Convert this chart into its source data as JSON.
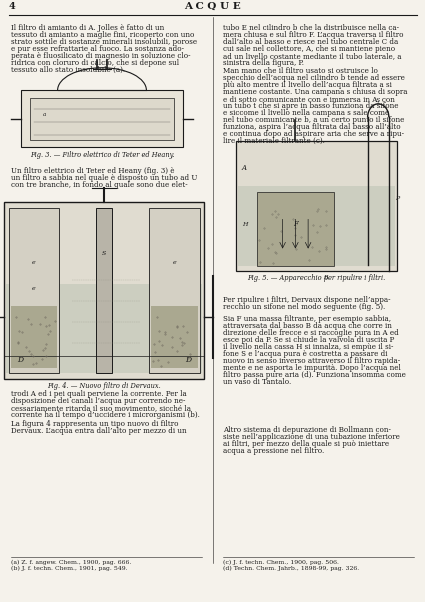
{
  "page_number": "4",
  "header_title": "A C Q U E",
  "background_color": "#f5f2eb",
  "text_color": "#1a1a1a",
  "fig3_caption": "Fig. 3. — Filtro elettrico di Teter ed Heany.",
  "fig4_caption": "Fig. 4. — Nuovo filtro di Dervaux.",
  "fig5_caption": "Fig. 5. — Apparecchio per ripulire i filtri.",
  "col1_p1": "Il filtro di amianto di A. Jolles è fatto di un\ntessuto di amianto a maglie fini, ricoperto con uno\nstrato sottile di sostanze minerali insolubili, porose\ne pur esse refrattarie al fuoco. La sostanza ado-\nperata è fluosilicato di magnesio in soluzione clo-\nridrica con cloruro di calcio, che si depone sul\ntessuto allo stato insolubile (a).",
  "col1_p2": "Un filtro elettrico di Teter ed Heany (fig. 3) è\nun filtro a sabbia nel quale è disposto un tubo ad U\ncon tre branche, in fondo al quale sono due elet-",
  "col1_p3": "trodi A ed i pei quali perviene la corrente. Per la\ndisposizione dei canali l’acqua pur correndo ne-\ncessariamente ritarda il suo movimento, sicché la\ncorrente ha il tempo d’uccidere i microrganismi (b).",
  "col1_p4": "La figura 4 rappresenta un tipo nuovo di filtro\nDervaux. L’acqua entra dall’alto per mezzo di un",
  "col1_fn": "(a) Z. f. angew. Chem., 1900, pag. 666.\n(b) J. f. techn. Chem., 1901, pag. 549.",
  "col2_p1": "tubo E nel cilindro b che la distribuisce nella ca-\nmera chiusa e sul filtro F. L’acqua traversa il filtro\ndall’alto al basso e riesce nel tubo centrale C da\ncui sale nel collettore, A, che si mantiene pieno\nad un livello costante mediante il tubo laterale, a\nsinistra della figura, P.",
  "col2_p2": "Man mano che il filtro usato si ostruisce lo\nspecchio dell’acqua nel cilindro b tende ad essere\npiù alto mentre il livello dell’acqua filtrata a si\nmantiene costante. Una campana s chiusa di sopra\ne di sotto comunicante con e immersa in A, con\nun tubo t che si apre in basso funziona da sifone\ne siccome il livello nella campana s sale come\nnel tubo comunicante b, a un certo punto il sifone\nfunziona, aspira l’acqua filtrata dal basso all’alto\ne continua dopo ad aspirare aria che serve a ripu-\nlire il materiale filtrante (c).",
  "col2_p3": "Per ripulire i filtri, Dervaux dispone nell’appa-\nrecchio un sifone nel modo seguente (fig. 5).",
  "col2_p4": "Sia F una massa filtrante, per esempio sabbia,\nattraversata dal basso B da acqua che corre in\ndirezione delle frecce e si raccoglie pura in A ed\nesce poi da P. Se si chiude la valvola di uscita P\nil livello nella cassa H si innalza, si empùe il si-\nfone S e l’acqua pura è costretta a passare di\nnuovo in senso inverso attraverso il filtro rapida-\nmente e ne asporta le impurità. Dopo l’acqua nel\nfiltro passa pure aria (d). Funziona insomma come\nun vaso di Tantalo.",
  "col2_p5": "Altro sistema di depurazione di Bollmann con-\nsiste nell’applicazione di una tubazione inferiore\nai filtri, per mezzo della quale si può iniettare\nacqua a pressione nel filtro.",
  "col2_fn": "(c) J. f. techn. Chem., 1900, pag. 506.\n(d) Techn. Chem. Jahrb., 1898-99, pag. 326."
}
